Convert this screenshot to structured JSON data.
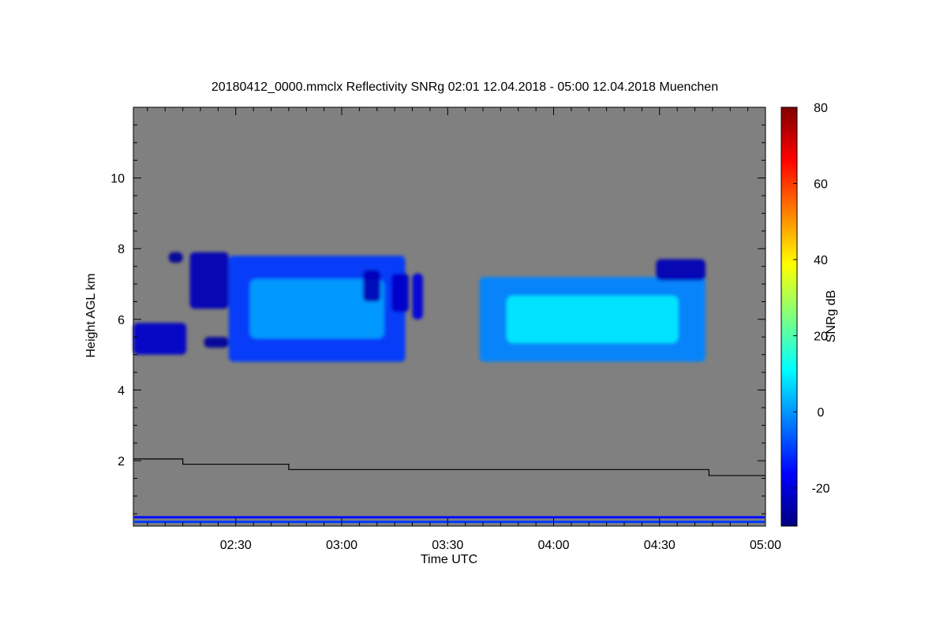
{
  "chart_data": {
    "type": "heatmap",
    "title": "20180412_0000.mmclx Reflectivity SNRg   02:01 12.04.2018 - 05:00 12.04.2018 Muenchen",
    "xlabel": "Time UTC",
    "ylabel": "Height AGL km",
    "x_range_minutes": [
      0,
      179
    ],
    "x_tick_labels": [
      "02:30",
      "03:00",
      "03:30",
      "04:00",
      "04:30",
      "05:00"
    ],
    "x_tick_values_minutes": [
      29,
      59,
      89,
      119,
      149,
      179
    ],
    "ylim": [
      0.15,
      12.0
    ],
    "y_ticks": [
      2,
      4,
      6,
      8,
      10
    ],
    "y_tick_labels": [
      "2",
      "4",
      "6",
      "8",
      "10"
    ],
    "background_color": "#808080",
    "colorbar": {
      "label": "SNRg dB",
      "range": [
        -30,
        80
      ],
      "ticks": [
        -20,
        0,
        20,
        40,
        60,
        80
      ],
      "tick_labels": [
        "-20",
        "0",
        "20",
        "40",
        "60",
        "80"
      ],
      "colormap": "jet",
      "colors": [
        "#00007f",
        "#0000ff",
        "#007fff",
        "#00ffff",
        "#7fff7f",
        "#ffff00",
        "#ff7f00",
        "#ff0000",
        "#7f0000"
      ]
    },
    "boundary_layer_line": [
      {
        "x": 0,
        "y": 2.05
      },
      {
        "x": 14,
        "y": 2.05
      },
      {
        "x": 14,
        "y": 1.9
      },
      {
        "x": 44,
        "y": 1.9
      },
      {
        "x": 44,
        "y": 1.75
      },
      {
        "x": 163,
        "y": 1.75
      },
      {
        "x": 163,
        "y": 1.58
      },
      {
        "x": 179,
        "y": 1.58
      }
    ],
    "cloud_regions": [
      {
        "x": [
          0,
          15
        ],
        "y": [
          5.0,
          5.9
        ],
        "snr": -10
      },
      {
        "x": [
          10,
          14
        ],
        "y": [
          7.6,
          7.9
        ],
        "snr": -15
      },
      {
        "x": [
          16,
          27
        ],
        "y": [
          6.3,
          7.9
        ],
        "snr": -12
      },
      {
        "x": [
          20,
          27
        ],
        "y": [
          5.2,
          5.5
        ],
        "snr": -15
      },
      {
        "x": [
          27,
          77
        ],
        "y": [
          4.8,
          7.8
        ],
        "snr": 2
      },
      {
        "x": [
          65,
          70
        ],
        "y": [
          6.5,
          7.4
        ],
        "snr": -12
      },
      {
        "x": [
          73,
          78
        ],
        "y": [
          6.2,
          7.3
        ],
        "snr": -10
      },
      {
        "x": [
          79,
          82
        ],
        "y": [
          6.0,
          7.3
        ],
        "snr": -8
      },
      {
        "x": [
          98,
          162
        ],
        "y": [
          4.8,
          7.2
        ],
        "snr": 10
      },
      {
        "x": [
          148,
          162
        ],
        "y": [
          7.1,
          7.7
        ],
        "snr": -12
      }
    ],
    "ground_clutter": [
      {
        "y": 0.4,
        "snr": -15
      },
      {
        "y": 0.27,
        "snr": -10
      }
    ]
  }
}
